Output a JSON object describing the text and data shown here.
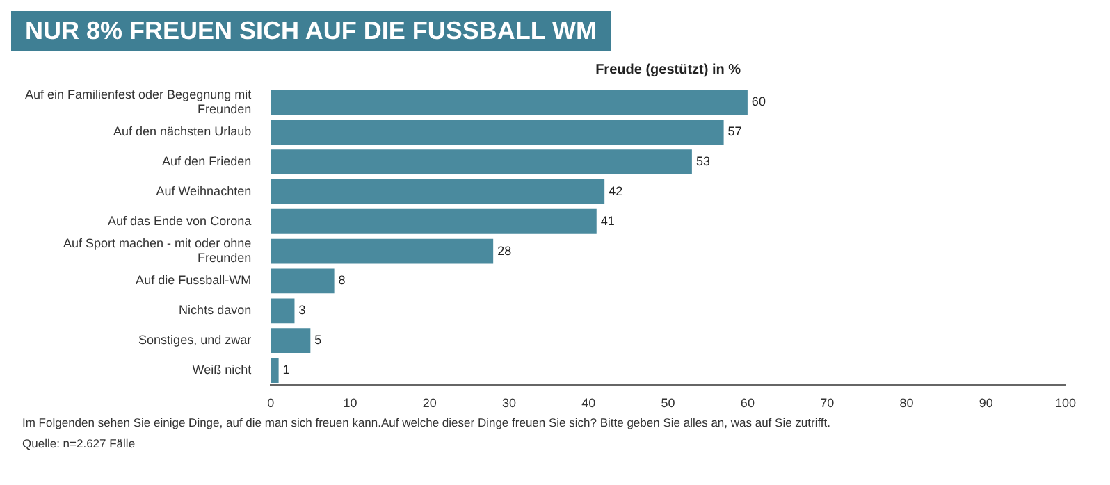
{
  "chart_data": {
    "type": "bar",
    "orientation": "horizontal",
    "title": "NUR 8% FREUEN SICH AUF DIE FUSSBALL WM",
    "subtitle": "Freude (gestützt) in %",
    "categories": [
      "Auf ein Familienfest oder Begegnung mit Freunden",
      "Auf den nächsten Urlaub",
      "Auf den Frieden",
      "Auf Weihnachten",
      "Auf das Ende von Corona",
      "Auf Sport machen - mit oder ohne Freunden",
      "Auf die Fussball-WM",
      "Nichts davon",
      "Sonstiges, und zwar",
      "Weiß nicht"
    ],
    "values": [
      60,
      57,
      53,
      42,
      41,
      28,
      8,
      3,
      5,
      1
    ],
    "color": "#4a8a9e",
    "xlim": [
      0,
      100
    ],
    "xticks": [
      0,
      10,
      20,
      30,
      40,
      50,
      60,
      70,
      80,
      90,
      100
    ],
    "data_labels": true,
    "legend": false,
    "grid": false,
    "annotations": [
      "Im Folgenden sehen Sie einige Dinge, auf die man sich freuen kann.Auf welche dieser Dinge freuen Sie sich? Bitte geben Sie alles an, was auf Sie zutrifft.",
      "Quelle: n=2.627 Fälle"
    ]
  }
}
